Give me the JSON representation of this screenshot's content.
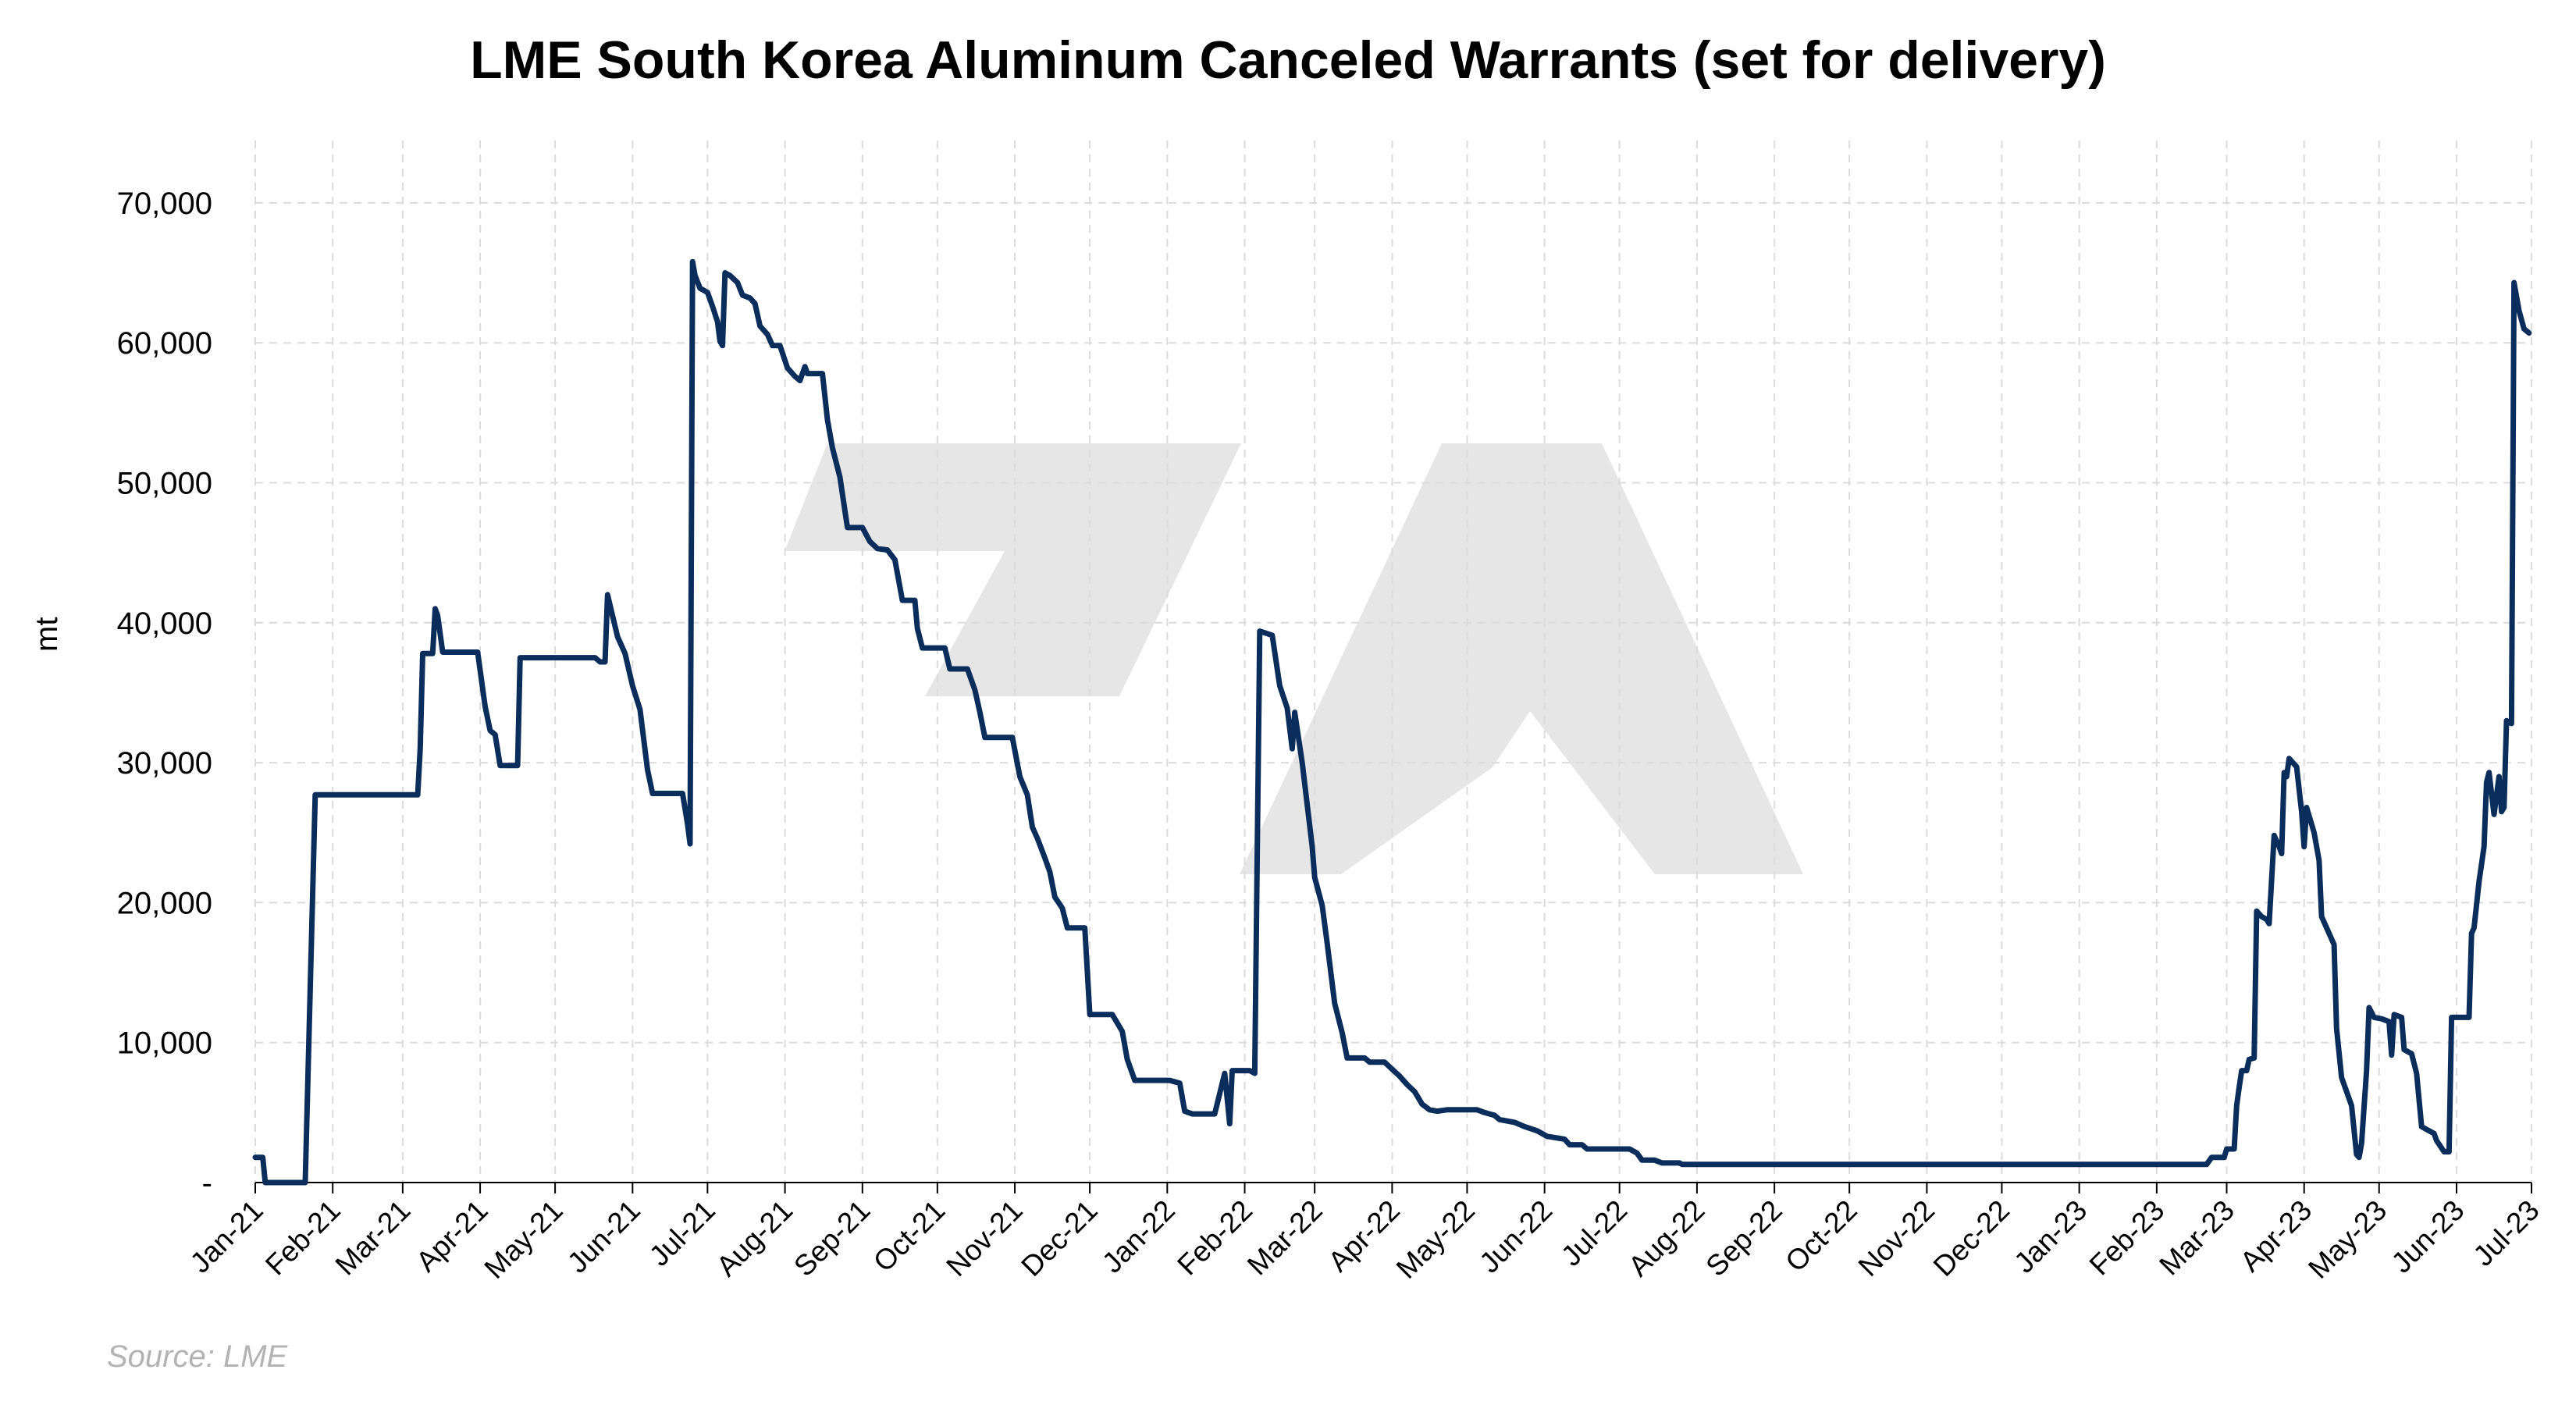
{
  "chart_data": {
    "type": "line",
    "title": "LME South Korea Aluminum Canceled Warrants (set for delivery)",
    "ylabel": "mt",
    "xlabel": "",
    "source": "Source: LME",
    "ylim": [
      0,
      70000
    ],
    "yticks": [
      "-",
      "10,000",
      "20,000",
      "30,000",
      "40,000",
      "50,000",
      "60,000",
      "70,000"
    ],
    "grid": true,
    "colors": {
      "line": "#0b2d5c",
      "grid": "#dcdcdc",
      "watermark": "#e6e6e6"
    },
    "x_categories": [
      "Jan-21",
      "Feb-21",
      "Mar-21",
      "Apr-21",
      "May-21",
      "Jun-21",
      "Jul-21",
      "Aug-21",
      "Sep-21",
      "Oct-21",
      "Nov-21",
      "Dec-21",
      "Jan-22",
      "Feb-22",
      "Mar-22",
      "Apr-22",
      "May-22",
      "Jun-22",
      "Jul-22",
      "Aug-22",
      "Sep-22",
      "Oct-22",
      "Nov-22",
      "Dec-22",
      "Jan-23",
      "Feb-23",
      "Mar-23",
      "Apr-23",
      "May-23",
      "Jun-23",
      "Jul-23"
    ],
    "series": [
      {
        "name": "",
        "points": [
          [
            "2021-01-01",
            1800
          ],
          [
            "2021-01-04",
            1800
          ],
          [
            "2021-01-05",
            0
          ],
          [
            "2021-01-21",
            0
          ],
          [
            "2021-01-25",
            27700
          ],
          [
            "2021-03-07",
            27700
          ],
          [
            "2021-03-08",
            31000
          ],
          [
            "2021-03-09",
            37800
          ],
          [
            "2021-03-13",
            37800
          ],
          [
            "2021-03-14",
            41000
          ],
          [
            "2021-03-15",
            40500
          ],
          [
            "2021-03-17",
            37900
          ],
          [
            "2021-03-31",
            37900
          ],
          [
            "2021-04-03",
            34000
          ],
          [
            "2021-04-05",
            32300
          ],
          [
            "2021-04-07",
            32000
          ],
          [
            "2021-04-09",
            29800
          ],
          [
            "2021-04-16",
            29800
          ],
          [
            "2021-04-17",
            37500
          ],
          [
            "2021-05-17",
            37500
          ],
          [
            "2021-05-19",
            37200
          ],
          [
            "2021-05-21",
            37200
          ],
          [
            "2021-05-22",
            42000
          ],
          [
            "2021-05-26",
            39000
          ],
          [
            "2021-05-29",
            37800
          ],
          [
            "2021-06-01",
            35500
          ],
          [
            "2021-06-04",
            33800
          ],
          [
            "2021-06-07",
            29500
          ],
          [
            "2021-06-09",
            27800
          ],
          [
            "2021-06-21",
            27800
          ],
          [
            "2021-06-23",
            25600
          ],
          [
            "2021-06-24",
            24200
          ],
          [
            "2021-06-25",
            65800
          ],
          [
            "2021-06-26",
            64800
          ],
          [
            "2021-06-28",
            63900
          ],
          [
            "2021-07-01",
            63600
          ],
          [
            "2021-07-03",
            62600
          ],
          [
            "2021-07-05",
            61500
          ],
          [
            "2021-07-06",
            60100
          ],
          [
            "2021-07-07",
            59800
          ],
          [
            "2021-07-08",
            65000
          ],
          [
            "2021-07-10",
            64800
          ],
          [
            "2021-07-13",
            64300
          ],
          [
            "2021-07-15",
            63400
          ],
          [
            "2021-07-18",
            63200
          ],
          [
            "2021-07-20",
            62800
          ],
          [
            "2021-07-22",
            61200
          ],
          [
            "2021-07-25",
            60600
          ],
          [
            "2021-07-27",
            59800
          ],
          [
            "2021-07-30",
            59800
          ],
          [
            "2021-08-02",
            58200
          ],
          [
            "2021-08-05",
            57600
          ],
          [
            "2021-08-07",
            57300
          ],
          [
            "2021-08-09",
            58300
          ],
          [
            "2021-08-10",
            57800
          ],
          [
            "2021-08-16",
            57800
          ],
          [
            "2021-08-18",
            54500
          ],
          [
            "2021-08-20",
            52500
          ],
          [
            "2021-08-23",
            50400
          ],
          [
            "2021-08-26",
            46800
          ],
          [
            "2021-09-01",
            46800
          ],
          [
            "2021-09-04",
            45800
          ],
          [
            "2021-09-07",
            45300
          ],
          [
            "2021-09-11",
            45200
          ],
          [
            "2021-09-14",
            44500
          ],
          [
            "2021-09-17",
            41600
          ],
          [
            "2021-09-22",
            41600
          ],
          [
            "2021-09-23",
            39600
          ],
          [
            "2021-09-25",
            38200
          ],
          [
            "2021-10-04",
            38200
          ],
          [
            "2021-10-06",
            36700
          ],
          [
            "2021-10-13",
            36700
          ],
          [
            "2021-10-16",
            35200
          ],
          [
            "2021-10-18",
            33600
          ],
          [
            "2021-10-20",
            31800
          ],
          [
            "2021-10-31",
            31800
          ],
          [
            "2021-11-03",
            29000
          ],
          [
            "2021-11-06",
            27700
          ],
          [
            "2021-11-08",
            25400
          ],
          [
            "2021-11-10",
            24600
          ],
          [
            "2021-11-13",
            23200
          ],
          [
            "2021-11-15",
            22200
          ],
          [
            "2021-11-17",
            20400
          ],
          [
            "2021-11-20",
            19600
          ],
          [
            "2021-11-22",
            18200
          ],
          [
            "2021-11-29",
            18200
          ],
          [
            "2021-12-01",
            12000
          ],
          [
            "2021-12-10",
            12000
          ],
          [
            "2021-12-14",
            10800
          ],
          [
            "2021-12-16",
            8800
          ],
          [
            "2021-12-19",
            7300
          ],
          [
            "2022-01-02",
            7300
          ],
          [
            "2022-01-06",
            7100
          ],
          [
            "2022-01-08",
            5100
          ],
          [
            "2022-01-11",
            4900
          ],
          [
            "2022-01-20",
            4900
          ],
          [
            "2022-01-24",
            7800
          ],
          [
            "2022-01-26",
            4200
          ],
          [
            "2022-01-27",
            8000
          ],
          [
            "2022-02-03",
            8000
          ],
          [
            "2022-02-05",
            7800
          ],
          [
            "2022-02-07",
            39400
          ],
          [
            "2022-02-12",
            39100
          ],
          [
            "2022-02-15",
            35500
          ],
          [
            "2022-02-18",
            33900
          ],
          [
            "2022-02-20",
            31000
          ],
          [
            "2022-02-21",
            33600
          ],
          [
            "2022-02-24",
            30000
          ],
          [
            "2022-02-28",
            24000
          ],
          [
            "2022-03-01",
            21800
          ],
          [
            "2022-03-04",
            19800
          ],
          [
            "2022-03-06",
            17100
          ],
          [
            "2022-03-09",
            12800
          ],
          [
            "2022-03-12",
            10700
          ],
          [
            "2022-03-14",
            8900
          ],
          [
            "2022-03-21",
            8900
          ],
          [
            "2022-03-23",
            8600
          ],
          [
            "2022-03-29",
            8600
          ],
          [
            "2022-04-01",
            8100
          ],
          [
            "2022-04-04",
            7600
          ],
          [
            "2022-04-07",
            7000
          ],
          [
            "2022-04-10",
            6500
          ],
          [
            "2022-04-13",
            5600
          ],
          [
            "2022-04-16",
            5200
          ],
          [
            "2022-04-19",
            5100
          ],
          [
            "2022-04-23",
            5200
          ],
          [
            "2022-05-05",
            5200
          ],
          [
            "2022-05-08",
            5000
          ],
          [
            "2022-05-12",
            4800
          ],
          [
            "2022-05-14",
            4500
          ],
          [
            "2022-05-20",
            4300
          ],
          [
            "2022-05-24",
            4000
          ],
          [
            "2022-05-29",
            3700
          ],
          [
            "2022-06-02",
            3300
          ],
          [
            "2022-06-09",
            3100
          ],
          [
            "2022-06-11",
            2700
          ],
          [
            "2022-06-16",
            2700
          ],
          [
            "2022-06-18",
            2400
          ],
          [
            "2022-07-05",
            2400
          ],
          [
            "2022-07-08",
            2100
          ],
          [
            "2022-07-10",
            1600
          ],
          [
            "2022-07-15",
            1600
          ],
          [
            "2022-07-18",
            1400
          ],
          [
            "2022-07-25",
            1400
          ],
          [
            "2022-07-26",
            1300
          ],
          [
            "2023-02-21",
            1300
          ],
          [
            "2023-02-23",
            1800
          ],
          [
            "2023-02-28",
            1800
          ],
          [
            "2023-03-01",
            2400
          ],
          [
            "2023-03-04",
            2400
          ],
          [
            "2023-03-05",
            5500
          ],
          [
            "2023-03-06",
            6800
          ],
          [
            "2023-03-07",
            8000
          ],
          [
            "2023-03-09",
            8000
          ],
          [
            "2023-03-10",
            8800
          ],
          [
            "2023-03-12",
            8900
          ],
          [
            "2023-03-13",
            19400
          ],
          [
            "2023-03-15",
            19000
          ],
          [
            "2023-03-17",
            18800
          ],
          [
            "2023-03-18",
            18500
          ],
          [
            "2023-03-20",
            24800
          ],
          [
            "2023-03-22",
            24000
          ],
          [
            "2023-03-23",
            23500
          ],
          [
            "2023-03-24",
            29300
          ],
          [
            "2023-03-25",
            29000
          ],
          [
            "2023-03-26",
            30300
          ],
          [
            "2023-03-29",
            29700
          ],
          [
            "2023-03-31",
            26500
          ],
          [
            "2023-04-01",
            24000
          ],
          [
            "2023-04-02",
            26800
          ],
          [
            "2023-04-05",
            25000
          ],
          [
            "2023-04-07",
            23000
          ],
          [
            "2023-04-08",
            19000
          ],
          [
            "2023-04-13",
            17000
          ],
          [
            "2023-04-14",
            11000
          ],
          [
            "2023-04-16",
            7500
          ],
          [
            "2023-04-20",
            5500
          ],
          [
            "2023-04-22",
            2000
          ],
          [
            "2023-04-23",
            1800
          ],
          [
            "2023-04-24",
            2800
          ],
          [
            "2023-04-26",
            8000
          ],
          [
            "2023-04-27",
            12500
          ],
          [
            "2023-04-29",
            11800
          ],
          [
            "2023-05-02",
            11700
          ],
          [
            "2023-05-05",
            11500
          ],
          [
            "2023-05-06",
            9100
          ],
          [
            "2023-05-07",
            12000
          ],
          [
            "2023-05-10",
            11800
          ],
          [
            "2023-05-11",
            9500
          ],
          [
            "2023-05-14",
            9200
          ],
          [
            "2023-05-16",
            7800
          ],
          [
            "2023-05-18",
            4000
          ],
          [
            "2023-05-20",
            3800
          ],
          [
            "2023-05-23",
            3500
          ],
          [
            "2023-05-24",
            3000
          ],
          [
            "2023-05-27",
            2200
          ],
          [
            "2023-05-29",
            2200
          ],
          [
            "2023-05-30",
            11800
          ],
          [
            "2023-06-06",
            11800
          ],
          [
            "2023-06-07",
            17800
          ],
          [
            "2023-06-08",
            18200
          ],
          [
            "2023-06-10",
            21500
          ],
          [
            "2023-06-12",
            24000
          ],
          [
            "2023-06-13",
            28600
          ],
          [
            "2023-06-14",
            29300
          ],
          [
            "2023-06-16",
            26300
          ],
          [
            "2023-06-18",
            29000
          ],
          [
            "2023-06-19",
            26500
          ],
          [
            "2023-06-20",
            26800
          ],
          [
            "2023-06-21",
            33000
          ],
          [
            "2023-06-23",
            32800
          ],
          [
            "2023-06-24",
            64300
          ],
          [
            "2023-06-26",
            62300
          ],
          [
            "2023-06-28",
            61000
          ],
          [
            "2023-06-30",
            60700
          ]
        ]
      }
    ]
  }
}
